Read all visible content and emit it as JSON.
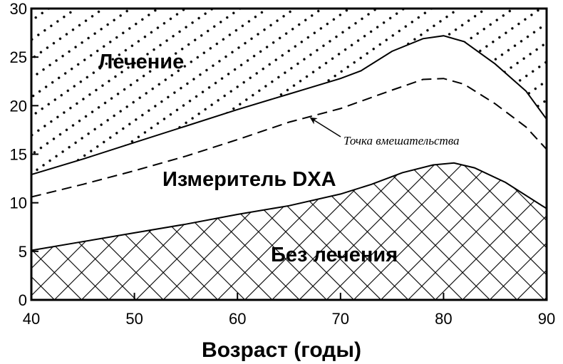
{
  "chart_data": {
    "type": "area",
    "title": "",
    "xlabel": "Возраст (годы)",
    "ylabel": "",
    "xlim": [
      40,
      90
    ],
    "ylim": [
      0,
      30
    ],
    "xticks": [
      "40",
      "50",
      "60",
      "70",
      "80",
      "90"
    ],
    "yticks": [
      "0",
      "5",
      "10",
      "15",
      "20",
      "25",
      "30"
    ],
    "grid": false,
    "series": [
      {
        "name": "",
        "style": "solid",
        "x": [
          40,
          45,
          50,
          55,
          60,
          65,
          70,
          72,
          75,
          78,
          80,
          82,
          85,
          88,
          90
        ],
        "y": [
          12.9,
          14.5,
          16.2,
          17.9,
          19.6,
          21.2,
          22.8,
          23.6,
          25.6,
          26.9,
          27.2,
          26.6,
          24.3,
          21.5,
          18.6
        ]
      },
      {
        "name": "",
        "style": "dashed",
        "x": [
          40,
          45,
          50,
          55,
          60,
          65,
          70,
          75,
          78,
          80,
          82,
          85,
          88,
          90
        ],
        "y": [
          10.6,
          11.9,
          13.3,
          14.8,
          16.5,
          18.3,
          19.7,
          21.6,
          22.7,
          22.8,
          22.2,
          20.2,
          17.8,
          15.5
        ]
      },
      {
        "name": "",
        "style": "solid",
        "x": [
          40,
          45,
          50,
          55,
          60,
          65,
          70,
          73,
          76,
          79,
          81,
          83,
          86,
          90
        ],
        "y": [
          5.1,
          6.0,
          6.9,
          7.8,
          8.8,
          9.7,
          10.9,
          11.9,
          13.1,
          13.9,
          14.1,
          13.6,
          12.1,
          9.4
        ]
      }
    ],
    "regions": [
      {
        "label": "Лечение",
        "pattern": "dots"
      },
      {
        "label": "Измеритель DXA",
        "pattern": "none"
      },
      {
        "label": "Без лечения",
        "pattern": "crosshatch"
      }
    ],
    "annotations": [
      {
        "text": "Точка вмешательства",
        "target_x": 67,
        "target_y": 19
      }
    ]
  }
}
